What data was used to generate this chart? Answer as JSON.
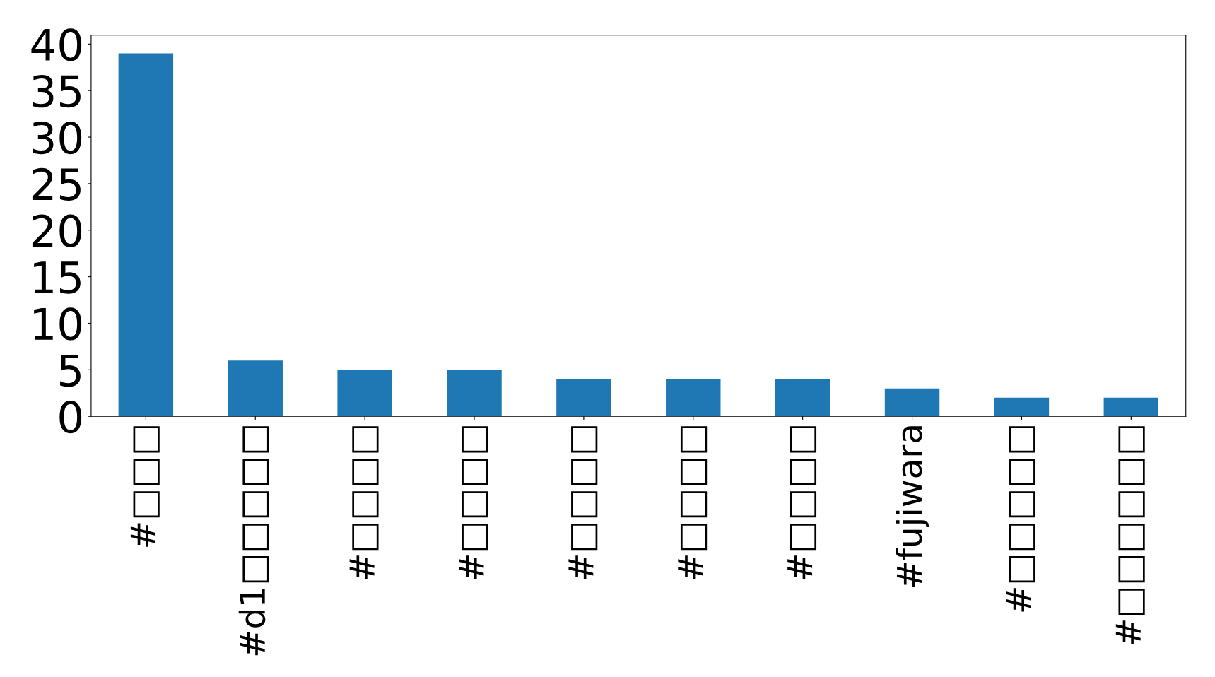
{
  "chart_data": {
    "type": "bar",
    "categories": [
      "#□□□",
      "#d1□□□□□",
      "#□□□□",
      "#□□□□",
      "#□□□□",
      "#□□□□",
      "#□□□□",
      "#fujiwara",
      "#□□□□□",
      "#□□□□□□"
    ],
    "values": [
      39,
      6,
      5,
      5,
      4,
      4,
      4,
      3,
      2,
      2
    ],
    "color": "#1f77b4",
    "ylim": [
      0,
      40.95
    ],
    "yticks": [
      0,
      5,
      10,
      15,
      20,
      25,
      30,
      35,
      40
    ],
    "grid": false,
    "legend": false
  }
}
